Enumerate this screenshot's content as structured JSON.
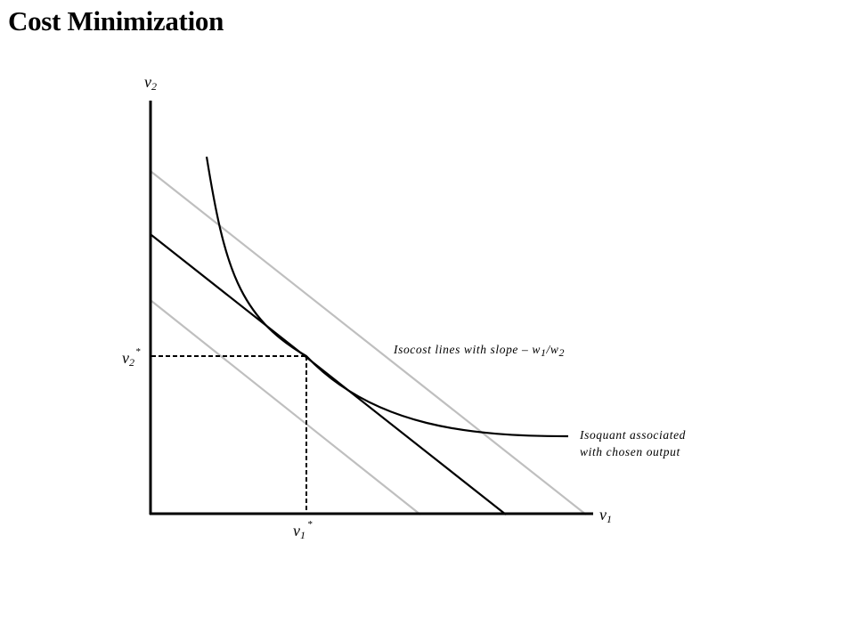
{
  "page": {
    "title": "Cost Minimization"
  },
  "diagram": {
    "type": "economics-cost-minimization",
    "axes": {
      "y": {
        "symbol": "v",
        "subscript": "2"
      },
      "x": {
        "symbol": "v",
        "subscript": "1"
      }
    },
    "optimum": {
      "y": {
        "symbol": "v",
        "subscript": "2",
        "superscript": "*"
      },
      "x": {
        "symbol": "v",
        "subscript": "1",
        "superscript": "*"
      }
    },
    "annotations": {
      "isocost": "Isocost lines with slope – w1/w2",
      "isocost_parts": {
        "prefix": "Isocost lines with slope – ",
        "w1": "w",
        "w1_sub": "1",
        "slash": "/",
        "w2": "w",
        "w2_sub": "2"
      },
      "isoquant_line1": "Isoquant associated",
      "isoquant_line2": "with chosen output"
    },
    "colors": {
      "axis": "#000000",
      "isoquant": "#000000",
      "isocost_optimal": "#000000",
      "isocost_other": "#bfbfbf",
      "guides": "#000000",
      "background": "#ffffff"
    }
  }
}
